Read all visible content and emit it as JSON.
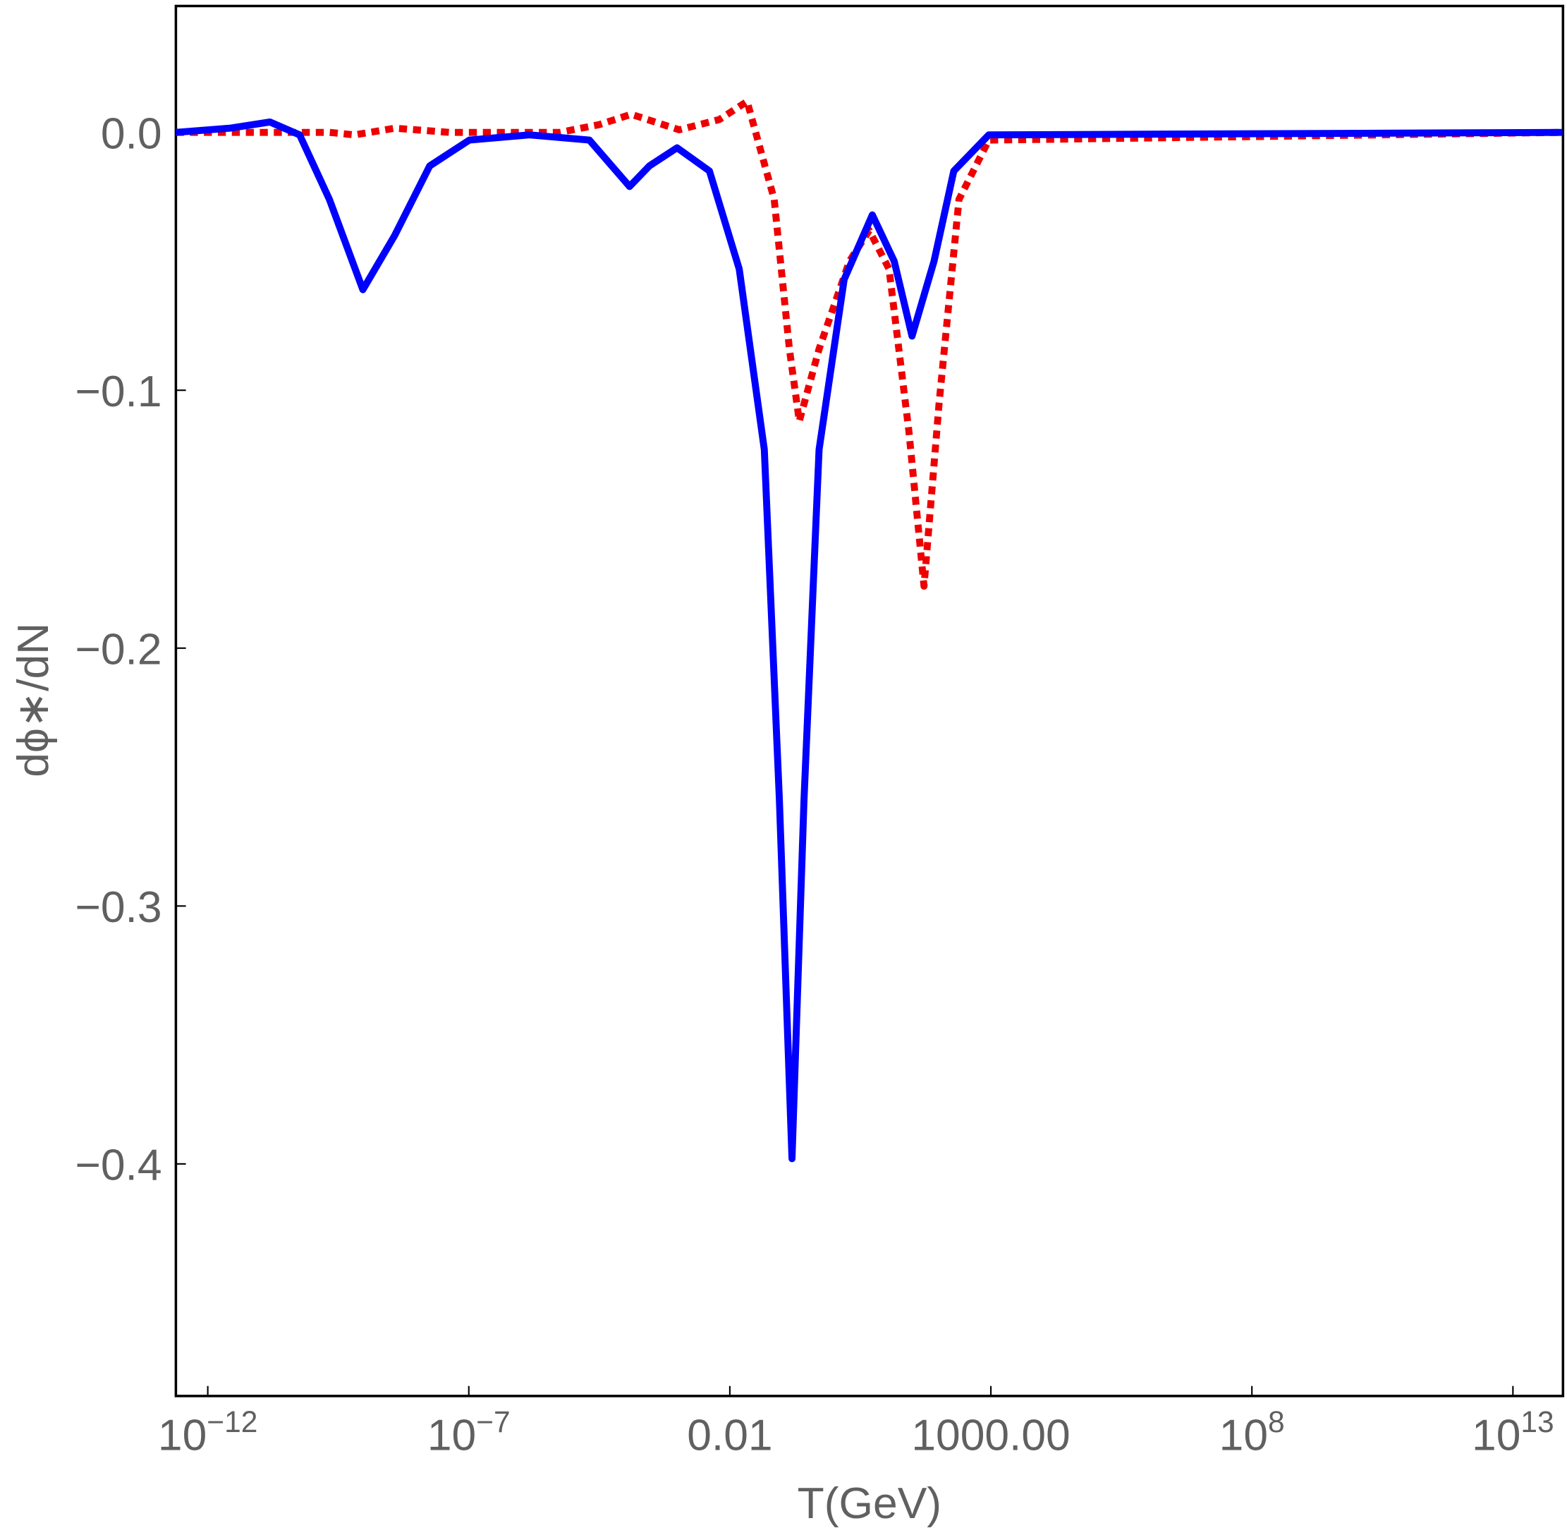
{
  "chart_data": {
    "type": "line",
    "xlabel": "T(GeV)",
    "ylabel": "dϕ∗/dN",
    "xscale": "log",
    "xlim": [
      2.45e-13,
      91000000000000.0
    ],
    "ylim": [
      -0.49,
      0.049
    ],
    "xticks": [
      {
        "value": 1e-12,
        "label": "10",
        "exponent": "−12"
      },
      {
        "value": 1e-07,
        "label": "10",
        "exponent": "−7"
      },
      0.01,
      {
        "value": 1000,
        "label": "1000.00"
      },
      {
        "value": 100000000.0,
        "label": "10",
        "exponent": "8"
      },
      {
        "value": 10000000000000.0,
        "label": "10",
        "exponent": "13"
      }
    ],
    "yticks": [
      {
        "value": 0,
        "label": "0.0"
      },
      {
        "value": -0.1,
        "label": "−0.1"
      },
      {
        "value": -0.2,
        "label": "−0.2"
      },
      {
        "value": -0.3,
        "label": "−0.3"
      },
      {
        "value": -0.4,
        "label": "−0.4"
      }
    ],
    "grid": false,
    "series": [
      {
        "color": "#0000ff",
        "style": "solid",
        "x": [
          2.45e-13,
          2.63e-12,
          1.55e-11,
          5.75e-11,
          2.14e-10,
          9.33e-10,
          3.8e-09,
          1.78e-08,
          1.02e-07,
          1.45e-06,
          2.04e-05,
          0.00012,
          0.000288,
          0.000977,
          0.00407,
          0.0151,
          0.0457,
          0.0891,
          0.155,
          0.263,
          0.513,
          1.55,
          5.37,
          14.1,
          30.9,
          81.3,
          195,
          912,
          89000000000000.0
        ],
        "values": [
          0,
          0.0016,
          0.004,
          -0.001,
          -0.026,
          -0.061,
          -0.04,
          -0.013,
          -0.003,
          -0.001,
          -0.003,
          -0.021,
          -0.013,
          -0.006,
          -0.015,
          -0.053,
          -0.123,
          -0.259,
          -0.398,
          -0.259,
          -0.123,
          -0.057,
          -0.032,
          -0.05,
          -0.079,
          -0.05,
          -0.015,
          -0.001,
          0
        ]
      },
      {
        "color": "#ee0000",
        "style": "dotted",
        "x": [
          2.45e-13,
          2.14e-10,
          6.46e-10,
          3.8e-09,
          4.27e-08,
          5.5e-06,
          3.16e-05,
          0.000129,
          0.00107,
          0.00631,
          0.0214,
          0.0708,
          0.138,
          0.214,
          0.513,
          1.95,
          4.68,
          11.2,
          26.9,
          52.5,
          102,
          245,
          912,
          89000000000000.0
        ],
        "values": [
          0,
          0,
          -0.001,
          0.0016,
          0,
          0,
          0.003,
          0.007,
          0.001,
          0.005,
          0.012,
          -0.026,
          -0.084,
          -0.112,
          -0.084,
          -0.05,
          -0.038,
          -0.053,
          -0.116,
          -0.176,
          -0.105,
          -0.026,
          -0.003,
          0
        ]
      }
    ]
  }
}
